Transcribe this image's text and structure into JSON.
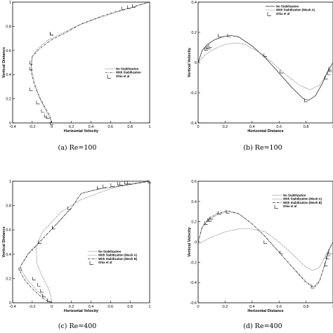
{
  "chart_data": [
    {
      "type": "line",
      "caption": "(a) Re=100",
      "xlabel": "Horizontal Velocity",
      "ylabel": "Vertical Distance",
      "xlim": [
        -0.4,
        1
      ],
      "ylim": [
        0,
        1
      ],
      "xticks": [
        "-0.4",
        "-0.2",
        "0",
        "0.2",
        "0.4",
        "0.6",
        "0.8",
        "1"
      ],
      "yticks": [
        "0",
        "0.2",
        "0.4",
        "0.6",
        "0.8",
        "1"
      ],
      "legend_position": "center-right",
      "series": [
        {
          "name": "No Stabilization",
          "style": "dotted",
          "x": [
            0,
            -0.03,
            -0.08,
            -0.13,
            -0.17,
            -0.2,
            -0.21,
            -0.2,
            -0.15,
            -0.05,
            0.1,
            0.25,
            0.45,
            0.6,
            0.75,
            0.88,
            1.0
          ],
          "y": [
            0,
            0.06,
            0.13,
            0.22,
            0.32,
            0.42,
            0.48,
            0.55,
            0.61,
            0.68,
            0.74,
            0.8,
            0.86,
            0.9,
            0.94,
            0.97,
            1.0
          ]
        },
        {
          "name": "With Stabilization",
          "style": "dashdot",
          "x": [
            0,
            -0.02,
            -0.07,
            -0.13,
            -0.18,
            -0.21,
            -0.21,
            -0.2,
            -0.13,
            -0.02,
            0.15,
            0.3,
            0.5,
            0.65,
            0.8,
            0.9,
            1.0
          ],
          "y": [
            0,
            0.06,
            0.13,
            0.22,
            0.32,
            0.42,
            0.48,
            0.55,
            0.61,
            0.68,
            0.75,
            0.82,
            0.88,
            0.92,
            0.95,
            0.98,
            1.0
          ]
        },
        {
          "name": "Ghia et al",
          "style": "markers",
          "x": [
            0,
            -0.04,
            -0.06,
            -0.09,
            -0.14,
            -0.21,
            -0.21,
            -0.21,
            0.0,
            0.0,
            0.73,
            0.79,
            0.84
          ],
          "y": [
            0.0,
            0.05,
            0.06,
            0.1,
            0.17,
            0.28,
            0.45,
            0.5,
            0.74,
            0.74,
            0.95,
            0.96,
            0.97
          ]
        }
      ]
    },
    {
      "type": "line",
      "caption": "(b) Re=100",
      "xlabel": "Horizontal Distance",
      "ylabel": "Vertical Velocity",
      "xlim": [
        0,
        1
      ],
      "ylim": [
        -0.4,
        0.4
      ],
      "xticks": [
        "0",
        "0.2",
        "0.4",
        "0.6",
        "0.8",
        "1"
      ],
      "yticks": [
        "-0.4",
        "-0.2",
        "0",
        "0.2",
        "0.4"
      ],
      "legend_position": "top-right",
      "series": [
        {
          "name": "No Stabilization",
          "style": "solid",
          "x": [
            0,
            0.03,
            0.07,
            0.12,
            0.18,
            0.24,
            0.3,
            0.4,
            0.5,
            0.6,
            0.7,
            0.78,
            0.82,
            0.87,
            0.92,
            0.96,
            1.0
          ],
          "y": [
            0,
            0.08,
            0.12,
            0.15,
            0.17,
            0.18,
            0.17,
            0.11,
            0.03,
            -0.07,
            -0.17,
            -0.24,
            -0.25,
            -0.22,
            -0.14,
            -0.06,
            0
          ]
        },
        {
          "name": "With Stabilization (Mesh A)",
          "style": "dotted",
          "x": [
            0,
            0.05,
            0.12,
            0.2,
            0.28,
            0.35,
            0.45,
            0.55,
            0.65,
            0.75,
            0.83,
            0.9,
            0.95,
            1.0
          ],
          "y": [
            0,
            0.05,
            0.09,
            0.12,
            0.13,
            0.12,
            0.07,
            0.0,
            -0.08,
            -0.15,
            -0.18,
            -0.15,
            -0.08,
            0
          ]
        },
        {
          "name": "Ghia et al",
          "style": "markers",
          "x": [
            0.06,
            0.07,
            0.08,
            0.09,
            0.16,
            0.23,
            0.5,
            0.62,
            0.8,
            0.95,
            0.97,
            0.98,
            0.98
          ],
          "y": [
            0.09,
            0.1,
            0.1,
            0.11,
            0.18,
            0.18,
            0.05,
            -0.06,
            -0.25,
            -0.1,
            -0.07,
            -0.05,
            -0.04
          ]
        }
      ]
    },
    {
      "type": "line",
      "caption": "(c) Re=400",
      "xlabel": "Horizontal Velocity",
      "ylabel": "Vertical Distance",
      "xlim": [
        -0.4,
        1
      ],
      "ylim": [
        0,
        1
      ],
      "xticks": [
        "-0.4",
        "-0.2",
        "0",
        "0.2",
        "0.4",
        "0.6",
        "0.8",
        "1"
      ],
      "yticks": [
        "0",
        "0.2",
        "0.4",
        "0.6",
        "0.8",
        "1"
      ],
      "legend_position": "center",
      "series": [
        {
          "name": "No Stabilization",
          "style": "dotted",
          "x": [
            0,
            -0.01,
            -0.04,
            -0.1,
            -0.15,
            -0.16,
            -0.1,
            0.1,
            0.3,
            0.5,
            0.65,
            0.8,
            1.0
          ],
          "y": [
            0,
            0.06,
            0.13,
            0.22,
            0.32,
            0.45,
            0.58,
            0.75,
            0.85,
            0.91,
            0.95,
            0.98,
            1.0
          ]
        },
        {
          "name": "With Stabilization (Mesh A)",
          "style": "dotted",
          "x": [
            0,
            -0.06,
            -0.15,
            -0.24,
            -0.3,
            -0.32,
            -0.25,
            -0.1,
            0.05,
            0.2,
            0.3,
            0.5,
            0.7,
            0.85,
            1.0
          ],
          "y": [
            0,
            0.04,
            0.1,
            0.18,
            0.25,
            0.3,
            0.4,
            0.52,
            0.65,
            0.78,
            0.9,
            0.94,
            0.96,
            0.98,
            1.0
          ]
        },
        {
          "name": "With Stabilization (Mesh B)",
          "style": "dashdot",
          "x": [
            0,
            -0.08,
            -0.18,
            -0.27,
            -0.32,
            -0.32,
            -0.24,
            -0.1,
            0.05,
            0.2,
            0.3,
            0.5,
            0.7,
            0.85,
            1.0
          ],
          "y": [
            0,
            0.03,
            0.1,
            0.18,
            0.25,
            0.3,
            0.4,
            0.52,
            0.65,
            0.78,
            0.9,
            0.94,
            0.96,
            0.98,
            1.0
          ]
        },
        {
          "name": "Ghia et al",
          "style": "markers",
          "x": [
            -0.03,
            -0.08,
            -0.1,
            -0.13,
            -0.18,
            -0.32,
            -0.12,
            0.02,
            0.18,
            0.48,
            0.54,
            0.62,
            0.69,
            0.71,
            0.76,
            0.79,
            1.0
          ],
          "y": [
            0.02,
            0.06,
            0.1,
            0.15,
            0.2,
            0.28,
            0.5,
            0.62,
            0.78,
            0.95,
            0.96,
            0.97,
            0.98,
            0.98,
            0.99,
            0.99,
            1.0
          ]
        }
      ]
    },
    {
      "type": "line",
      "caption": "(d) Re=400",
      "xlabel": "Horizontal Distance",
      "ylabel": "Vertical Velocity",
      "xlim": [
        0,
        1
      ],
      "ylim": [
        -0.6,
        0.6
      ],
      "xticks": [
        "0",
        "0.2",
        "0.4",
        "0.6",
        "0.8",
        "1"
      ],
      "yticks": [
        "-0.6",
        "-0.4",
        "-0.2",
        "0",
        "0.2",
        "0.4",
        "0.6"
      ],
      "legend_position": "top-right",
      "series": [
        {
          "name": "No Stabilization",
          "style": "dotted",
          "x": [
            0,
            0.1,
            0.2,
            0.3,
            0.4,
            0.5,
            0.6,
            0.7,
            0.8,
            0.85,
            0.9,
            0.95,
            1.0
          ],
          "y": [
            -0.02,
            0.05,
            0.1,
            0.13,
            0.13,
            0.1,
            0.0,
            -0.12,
            -0.25,
            -0.28,
            -0.25,
            -0.12,
            0
          ]
        },
        {
          "name": "With Stabilization (Mesh A)",
          "style": "dotted",
          "x": [
            0,
            0.03,
            0.08,
            0.14,
            0.22,
            0.3,
            0.4,
            0.5,
            0.6,
            0.7,
            0.8,
            0.86,
            0.9,
            0.94,
            0.97,
            1.0
          ],
          "y": [
            0,
            0.14,
            0.22,
            0.27,
            0.3,
            0.28,
            0.18,
            0.05,
            -0.1,
            -0.25,
            -0.39,
            -0.44,
            -0.38,
            -0.22,
            -0.08,
            0
          ]
        },
        {
          "name": "With Stabilization (Mesh B)",
          "style": "dashdot",
          "x": [
            0,
            0.03,
            0.08,
            0.14,
            0.22,
            0.3,
            0.4,
            0.5,
            0.6,
            0.7,
            0.8,
            0.86,
            0.9,
            0.94,
            0.97,
            1.0
          ],
          "y": [
            0,
            0.15,
            0.23,
            0.28,
            0.31,
            0.28,
            0.18,
            0.05,
            -0.1,
            -0.25,
            -0.4,
            -0.45,
            -0.39,
            -0.22,
            -0.08,
            0
          ]
        },
        {
          "name": "Ghia et al",
          "style": "markers",
          "x": [
            0.06,
            0.08,
            0.09,
            0.1,
            0.16,
            0.22,
            0.5,
            0.62,
            0.85,
            0.95,
            0.96,
            0.97,
            0.98
          ],
          "y": [
            0.19,
            0.22,
            0.22,
            0.24,
            0.29,
            0.3,
            0.0,
            -0.1,
            -0.44,
            -0.22,
            -0.15,
            -0.12,
            -0.1
          ]
        }
      ]
    }
  ]
}
